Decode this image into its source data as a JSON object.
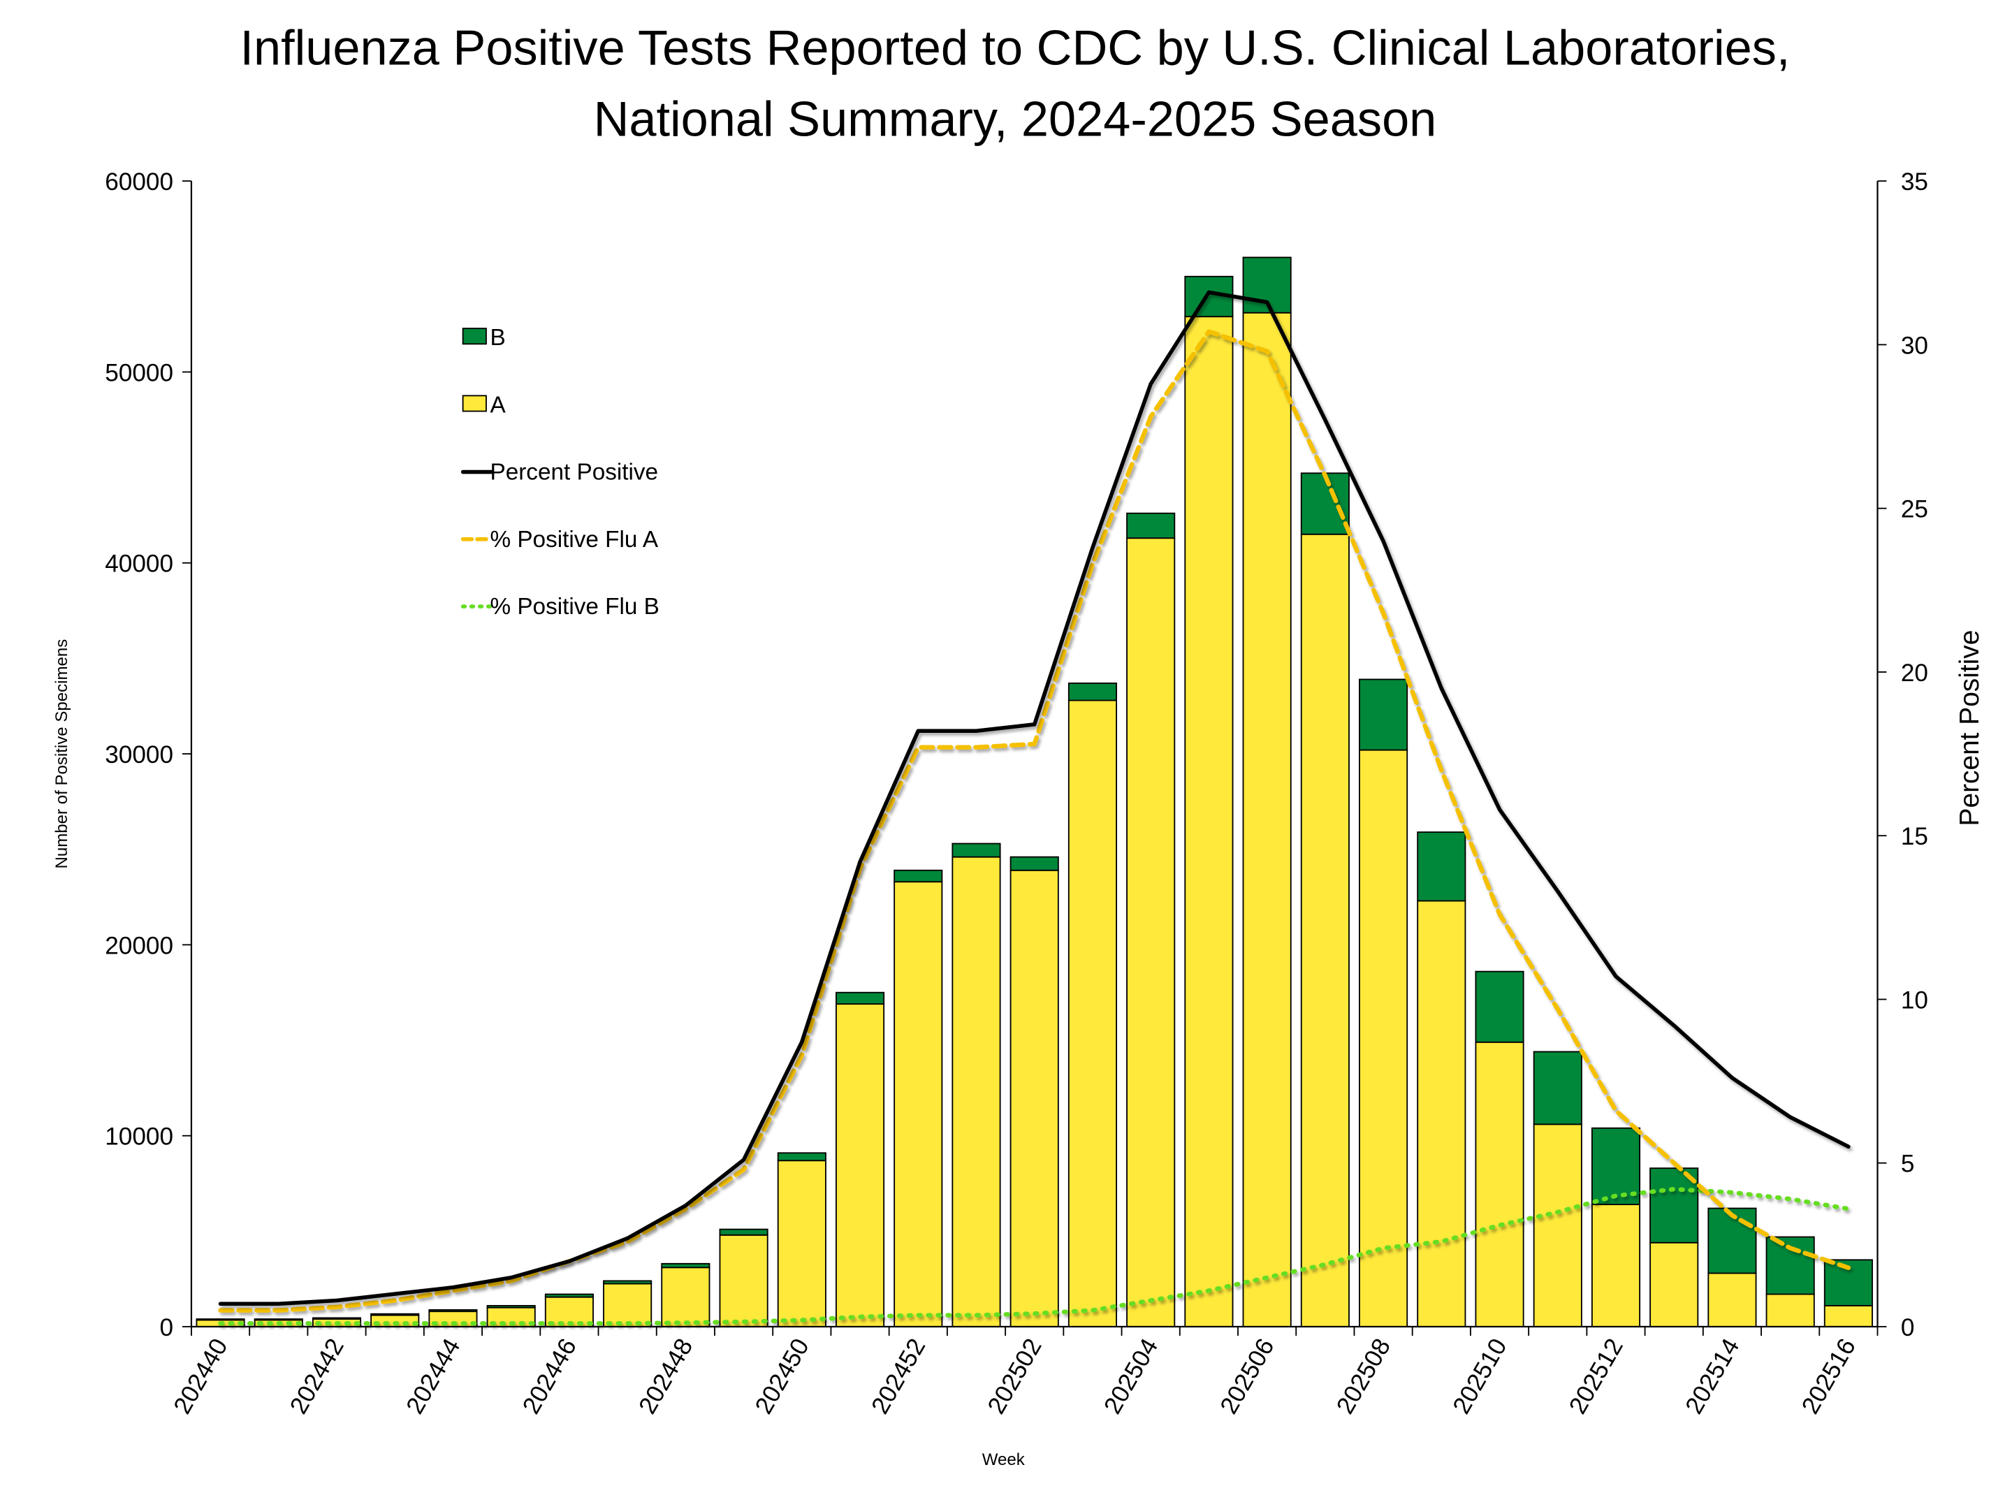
{
  "chart_data": {
    "type": "bar",
    "title_lines": [
      "Influenza Positive Tests Reported to CDC by U.S. Clinical Laboratories,",
      "National Summary, 2024-2025 Season"
    ],
    "xlabel": "Week",
    "ylabel": "Number of Positive Specimens",
    "y2label": "Percent Positive",
    "ylim": [
      0,
      60000
    ],
    "y2lim": [
      0,
      35
    ],
    "yticks": [
      0,
      10000,
      20000,
      30000,
      40000,
      50000,
      60000
    ],
    "y2ticks": [
      0,
      5,
      10,
      15,
      20,
      25,
      30,
      35
    ],
    "legend_placement": "upper-left",
    "categories": [
      "202440",
      "202441",
      "202442",
      "202443",
      "202444",
      "202445",
      "202446",
      "202447",
      "202448",
      "202449",
      "202450",
      "202451",
      "202452",
      "202501",
      "202502",
      "202503",
      "202504",
      "202505",
      "202506",
      "202507",
      "202508",
      "202509",
      "202510",
      "202511",
      "202512",
      "202513",
      "202514",
      "202515",
      "202516"
    ],
    "xtick_labels": [
      "202440",
      "202442",
      "202444",
      "202446",
      "202448",
      "202450",
      "202452",
      "202502",
      "202504",
      "202506",
      "202508",
      "202510",
      "202512",
      "202514",
      "202516"
    ],
    "bar_series": [
      {
        "name": "A",
        "color": "#FFE93B",
        "values": [
          350,
          350,
          400,
          600,
          800,
          1000,
          1550,
          2250,
          3100,
          4800,
          8700,
          16900,
          23300,
          24600,
          23900,
          32800,
          41300,
          52900,
          53100,
          41500,
          30200,
          22300,
          14900,
          10600,
          6400,
          4400,
          2800,
          1700,
          1100
        ]
      },
      {
        "name": "B",
        "color": "#00883A",
        "values": [
          50,
          50,
          60,
          70,
          80,
          100,
          150,
          150,
          200,
          300,
          400,
          600,
          600,
          700,
          700,
          900,
          1300,
          2100,
          2900,
          3200,
          3700,
          3600,
          3700,
          3800,
          4000,
          3900,
          3400,
          3000,
          2400
        ]
      }
    ],
    "line_series": [
      {
        "name": "Percent Positive",
        "color": "#000000",
        "style": "solid",
        "values": [
          0.7,
          0.7,
          0.8,
          1.0,
          1.2,
          1.5,
          2.0,
          2.7,
          3.7,
          5.1,
          8.7,
          14.2,
          18.2,
          18.2,
          18.4,
          23.8,
          28.8,
          31.6,
          31.3,
          27.7,
          24.0,
          19.5,
          15.8,
          13.3,
          10.7,
          9.2,
          7.6,
          6.4,
          5.5
        ]
      },
      {
        "name": "% Positive Flu A",
        "color": "#F5C000",
        "style": "dashed",
        "values": [
          0.5,
          0.5,
          0.6,
          0.8,
          1.1,
          1.4,
          2.0,
          2.6,
          3.6,
          4.8,
          8.3,
          14.0,
          17.7,
          17.7,
          17.8,
          23.3,
          27.8,
          30.4,
          29.8,
          26.0,
          21.8,
          17.0,
          12.6,
          9.7,
          6.6,
          5.0,
          3.4,
          2.4,
          1.8
        ]
      },
      {
        "name": "% Positive Flu B",
        "color": "#66DD22",
        "style": "dotted",
        "values": [
          0.1,
          0.1,
          0.1,
          0.1,
          0.1,
          0.1,
          0.1,
          0.1,
          0.12,
          0.15,
          0.2,
          0.3,
          0.35,
          0.35,
          0.4,
          0.5,
          0.8,
          1.1,
          1.5,
          1.9,
          2.4,
          2.6,
          3.1,
          3.5,
          4.0,
          4.2,
          4.1,
          3.9,
          3.6
        ]
      }
    ]
  }
}
